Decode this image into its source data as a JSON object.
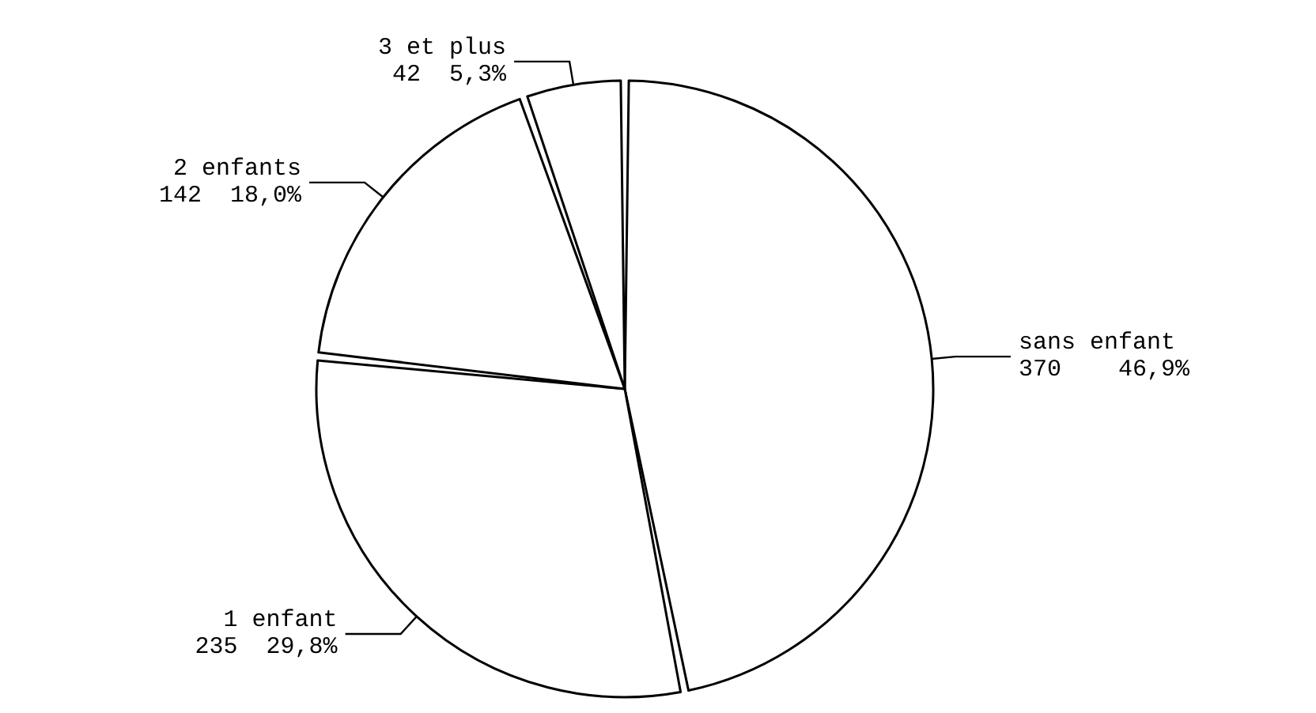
{
  "chart_data": {
    "type": "pie",
    "categories": [
      "sans enfant",
      "1 enfant",
      "2 enfants",
      "3 et plus"
    ],
    "values": [
      370,
      235,
      142,
      42
    ],
    "value_labels": [
      "370    46,9%",
      "235  29,8%",
      "142  18,0%",
      "42  5,3%"
    ],
    "colors": [
      "#ffffff",
      "#ffffff",
      "#ffffff",
      "#ffffff"
    ],
    "legend": false
  }
}
